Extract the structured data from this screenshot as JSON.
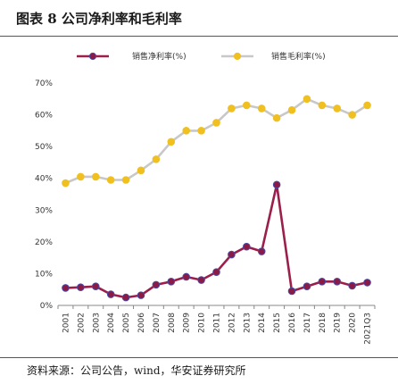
{
  "figure": {
    "title": "图表 8 公司净利率和毛利率",
    "source": "资料来源：公司公告，wind，华安证券研究所"
  },
  "colors": {
    "net_margin": "#9b1f4b",
    "net_margin_fill": "#8b1a45",
    "net_margin_outline": "#4a4aa8",
    "gross_margin": "#c8c8c8",
    "gross_margin_marker": "#f0c020",
    "axis": "#888888"
  },
  "chart_data": {
    "type": "line",
    "title": "",
    "xlabel": "",
    "ylabel": "",
    "categories": [
      "2001",
      "2002",
      "2003",
      "2004",
      "2005",
      "2006",
      "2007",
      "2008",
      "2009",
      "2010",
      "2011",
      "2012",
      "2013",
      "2014",
      "2015",
      "2016",
      "2017",
      "2018",
      "2019",
      "2020",
      "2021Q3"
    ],
    "ylim": [
      0,
      70
    ],
    "yticks": [
      "0%",
      "10%",
      "20%",
      "30%",
      "40%",
      "50%",
      "60%",
      "70%"
    ],
    "legend_position": "top",
    "grid": false,
    "series": [
      {
        "name": "销售净利率(%)",
        "values": [
          5.5,
          5.7,
          6.0,
          3.5,
          2.5,
          3.2,
          6.5,
          7.5,
          9.0,
          8.0,
          10.5,
          16.0,
          18.5,
          17.0,
          38.0,
          4.5,
          6.0,
          7.5,
          7.5,
          6.2,
          7.2
        ]
      },
      {
        "name": "销售毛利率(%)",
        "values": [
          38.5,
          40.5,
          40.5,
          39.5,
          39.5,
          42.5,
          46.0,
          51.5,
          55.0,
          55.0,
          57.5,
          62.0,
          63.0,
          62.0,
          59.0,
          61.5,
          65.0,
          63.0,
          62.0,
          60.0,
          63.0
        ]
      }
    ]
  }
}
